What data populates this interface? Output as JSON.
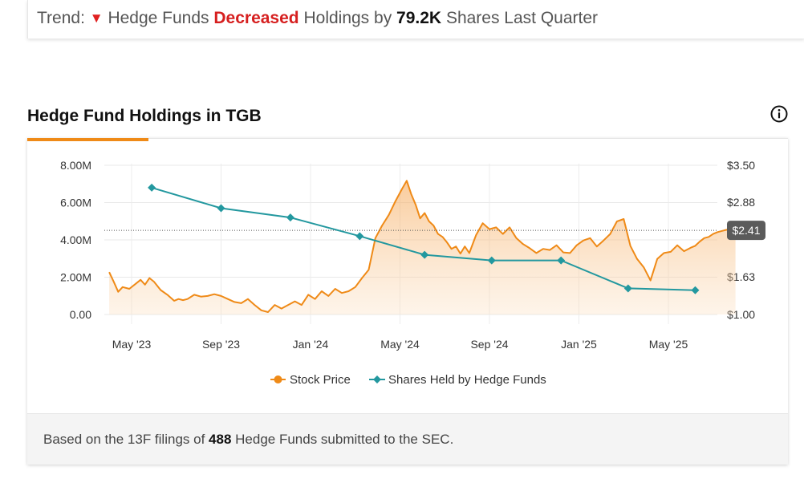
{
  "trend": {
    "label": "Trend:",
    "arrow": "▼",
    "text1": "Hedge Funds",
    "decreased": "Decreased",
    "text2": "Holdings by",
    "amount": "79.2K",
    "text3": "Shares Last Quarter"
  },
  "section": {
    "title": "Hedge Fund Holdings in TGB"
  },
  "icons": {
    "info": "info-circle-icon"
  },
  "colors": {
    "accent": "#ef8a17",
    "stock": "#ef8a17",
    "shares": "#23989f",
    "down": "#e02020",
    "badge": "#5b5b5b"
  },
  "footer": {
    "prefix": "Based on the 13F filings of",
    "count": "488",
    "suffix": "Hedge Funds submitted to the SEC."
  },
  "chart_data": {
    "type": "line",
    "x_tick_labels": [
      "May '23",
      "Sep '23",
      "Jan '24",
      "May '24",
      "Sep '24",
      "Jan '25",
      "May '25"
    ],
    "y_left": {
      "ticks": [
        "8.00M",
        "6.00M",
        "4.00M",
        "2.00M",
        "0.00"
      ],
      "range": [
        0,
        8000000
      ]
    },
    "y_right": {
      "ticks": [
        "$3.50",
        "$2.88",
        "$2.41",
        "$1.63",
        "$1.00"
      ],
      "range": [
        1.0,
        3.5
      ]
    },
    "current_price_label": "$2.41",
    "current_price": 2.41,
    "legend": [
      "Stock Price",
      "Shares Held by Hedge Funds"
    ],
    "series": [
      {
        "name": "Shares Held by Hedge Funds",
        "axis": "left",
        "x": [
          0.9,
          4.0,
          7.1,
          10.2,
          13.1,
          16.1,
          19.2,
          22.2,
          25.2
        ],
        "values": [
          6800000,
          5700000,
          5200000,
          4200000,
          3200000,
          2900000,
          2900000,
          1400000,
          1300000
        ]
      },
      {
        "name": "Stock Price",
        "axis": "right",
        "x": [
          -1.0,
          -0.8,
          -0.6,
          -0.4,
          -0.1,
          0.2,
          0.4,
          0.6,
          0.8,
          1.0,
          1.3,
          1.6,
          1.9,
          2.1,
          2.3,
          2.5,
          2.8,
          3.1,
          3.4,
          3.7,
          4.0,
          4.3,
          4.6,
          4.9,
          5.2,
          5.5,
          5.8,
          6.1,
          6.4,
          6.7,
          7.0,
          7.3,
          7.6,
          7.9,
          8.2,
          8.5,
          8.8,
          9.1,
          9.4,
          9.7,
          10.0,
          10.3,
          10.6,
          10.9,
          11.2,
          11.5,
          11.8,
          12.1,
          12.3,
          12.5,
          12.7,
          12.9,
          13.1,
          13.3,
          13.5,
          13.7,
          13.9,
          14.1,
          14.3,
          14.5,
          14.7,
          14.9,
          15.1,
          15.4,
          15.7,
          16.0,
          16.3,
          16.6,
          16.9,
          17.2,
          17.5,
          17.8,
          18.1,
          18.4,
          18.7,
          19.0,
          19.3,
          19.6,
          19.9,
          20.2,
          20.5,
          20.8,
          21.1,
          21.4,
          21.7,
          22.0,
          22.3,
          22.6,
          22.9,
          23.2,
          23.5,
          23.8,
          24.1,
          24.4,
          24.7,
          25.0,
          25.2,
          25.4,
          25.6,
          25.8,
          26.0,
          26.2,
          26.4,
          26.6,
          26.8,
          27.0
        ],
        "values": [
          1.71,
          1.55,
          1.38,
          1.46,
          1.43,
          1.52,
          1.58,
          1.5,
          1.61,
          1.55,
          1.41,
          1.33,
          1.23,
          1.26,
          1.24,
          1.26,
          1.33,
          1.3,
          1.31,
          1.34,
          1.31,
          1.26,
          1.21,
          1.19,
          1.26,
          1.16,
          1.07,
          1.04,
          1.16,
          1.1,
          1.16,
          1.22,
          1.16,
          1.33,
          1.26,
          1.39,
          1.31,
          1.43,
          1.36,
          1.39,
          1.46,
          1.61,
          1.75,
          2.28,
          2.49,
          2.67,
          2.9,
          3.11,
          3.24,
          3.02,
          2.84,
          2.61,
          2.7,
          2.56,
          2.49,
          2.35,
          2.3,
          2.21,
          2.1,
          2.14,
          2.02,
          2.14,
          2.03,
          2.33,
          2.53,
          2.43,
          2.46,
          2.35,
          2.46,
          2.28,
          2.18,
          2.11,
          2.03,
          2.1,
          2.08,
          2.16,
          2.04,
          2.03,
          2.16,
          2.24,
          2.28,
          2.14,
          2.24,
          2.35,
          2.56,
          2.6,
          2.15,
          1.93,
          1.79,
          1.57,
          1.93,
          2.03,
          2.05,
          2.16,
          2.06,
          2.12,
          2.15,
          2.22,
          2.28,
          2.3,
          2.35,
          2.38,
          2.4,
          2.42,
          2.41,
          2.41
        ]
      }
    ]
  }
}
